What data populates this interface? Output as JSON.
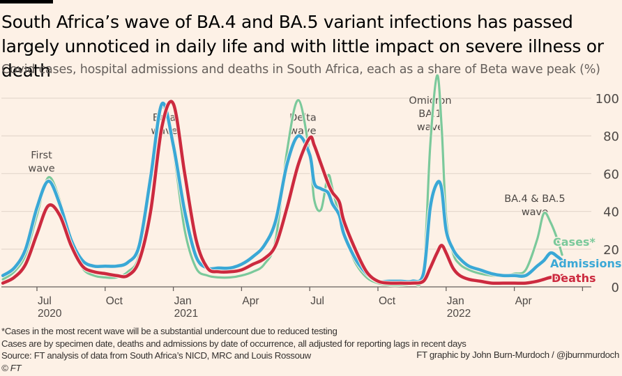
{
  "header": {
    "title": "South Africa’s wave of BA.4 and BA.5 variant infections has passed largely unnoticed in daily life and with little impact on severe illness or death",
    "subtitle": "Covid cases, hospital admissions and deaths in South Africa, each as a share of Beta wave peak (%)"
  },
  "footer": {
    "note1": "*Cases in the most recent wave will be a substantial undercount due to reduced testing",
    "note2": "Cases are by specimen date, deaths and admissions by date of occurrence, all adjusted for reporting lags in recent days",
    "source": "Source: FT analysis of data from South Africa’s NICD, MRC and Louis Rossouw",
    "credit": "FT graphic by John Burn-Murdoch / @jburnmurdoch",
    "copyright": "© FT"
  },
  "chart_data": {
    "type": "line",
    "title": "Covid cases, hospital admissions and deaths in South Africa, each as a share of Beta wave peak (%)",
    "xlabel": "",
    "ylabel": "",
    "x_unit": "months since Jan 1 2020",
    "xlim": [
      4.5,
      21.8
    ],
    "ylim": [
      0,
      100
    ],
    "yticks": [
      0,
      20,
      40,
      60,
      80,
      100
    ],
    "ytick_labels": [
      "0",
      "20",
      "40",
      "60",
      "80",
      "100"
    ],
    "xticks": [
      {
        "x": 6,
        "label": "Jul",
        "year": "2020"
      },
      {
        "x": 9,
        "label": "Oct",
        "year": ""
      },
      {
        "x": 12,
        "label": "Jan",
        "year": "2021"
      },
      {
        "x": 15,
        "label": "Apr",
        "year": ""
      },
      {
        "x": 18,
        "label": "Jul",
        "year": ""
      },
      {
        "x": 21,
        "label": "Oct",
        "year": ""
      },
      {
        "x": 24,
        "label": "Jan",
        "year": "2022"
      },
      {
        "x": 27,
        "label": "Apr",
        "year": ""
      },
      {
        "x": 30,
        "label": "",
        "year": ""
      }
    ],
    "grid": true,
    "legend": "direct labels at right end of lines",
    "annotations": [
      {
        "text": [
          "First",
          "wave"
        ],
        "x": 6.2,
        "y": 68
      },
      {
        "text": [
          "Beta",
          "wave"
        ],
        "x": 11.6,
        "y": 88
      },
      {
        "text": [
          "Delta",
          "wave"
        ],
        "x": 17.7,
        "y": 88
      },
      {
        "text": [
          "Omicron",
          "BA.1",
          "wave"
        ],
        "x": 23.3,
        "y": 97
      },
      {
        "text": [
          "BA.4 & BA.5",
          "wave"
        ],
        "x": 27.9,
        "y": 45
      }
    ],
    "x": [
      4.5,
      5,
      5.5,
      6,
      6.5,
      7,
      7.5,
      8,
      8.5,
      9,
      9.5,
      10,
      10.5,
      11,
      11.5,
      12,
      12.5,
      13,
      13.5,
      14,
      14.5,
      15,
      15.5,
      16,
      16.5,
      17,
      17.5,
      18,
      18.2,
      18.5,
      18.8,
      19,
      19.3,
      19.5,
      20,
      20.5,
      21,
      21.5,
      22,
      22.5,
      23,
      23.3,
      23.6,
      23.8,
      24,
      24.3,
      24.6,
      25,
      25.5,
      26,
      26.5,
      27,
      27.5,
      28,
      28.3,
      28.6,
      28.9,
      29.1
    ],
    "series": [
      {
        "name": "Cases*",
        "color": "#7bc99b",
        "values": [
          4,
          8,
          17,
          38,
          58,
          46,
          24,
          10,
          6,
          5,
          5,
          8,
          17,
          55,
          95,
          72,
          30,
          10,
          6,
          5,
          5,
          6,
          8,
          12,
          25,
          72,
          99,
          70,
          46,
          41,
          59,
          52,
          37,
          28,
          13,
          5,
          2,
          1,
          1,
          2,
          8,
          75,
          112,
          85,
          37,
          18,
          12,
          9,
          7,
          6,
          6,
          7,
          9,
          25,
          39,
          34,
          25,
          17
        ]
      },
      {
        "name": "Admissions",
        "color": "#3aa8d6",
        "values": [
          6,
          10,
          20,
          42,
          56,
          44,
          25,
          14,
          11,
          11,
          11,
          13,
          22,
          58,
          97,
          75,
          40,
          16,
          10,
          10,
          10,
          12,
          16,
          22,
          35,
          65,
          80,
          70,
          55,
          52,
          50,
          44,
          38,
          28,
          15,
          7,
          3,
          3,
          3,
          3,
          7,
          42,
          55,
          52,
          30,
          20,
          15,
          11,
          9,
          7,
          6,
          6,
          6,
          11,
          14,
          18,
          16,
          14
        ]
      },
      {
        "name": "Deaths",
        "color": "#cc2a3f",
        "values": [
          2,
          5,
          12,
          28,
          43,
          38,
          22,
          11,
          8,
          7,
          6,
          6,
          14,
          40,
          85,
          97,
          60,
          25,
          10,
          8,
          8,
          9,
          12,
          15,
          22,
          42,
          65,
          79,
          75,
          65,
          55,
          50,
          45,
          35,
          20,
          8,
          3,
          2,
          2,
          2,
          3,
          10,
          18,
          22,
          18,
          10,
          6,
          4,
          3,
          2,
          2,
          2,
          2,
          3,
          4,
          5,
          5,
          6
        ]
      }
    ]
  }
}
